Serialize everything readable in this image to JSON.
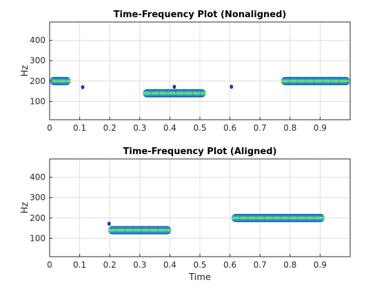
{
  "chart_data": [
    {
      "type": "heatmap",
      "title": "Time-Frequency Plot (Nonaligned)",
      "xlabel": "",
      "ylabel": "Hz",
      "xlim": [
        0,
        1
      ],
      "ylim": [
        10,
        490
      ],
      "xticks": [
        0,
        0.1,
        0.2,
        0.3,
        0.4,
        0.5,
        0.6,
        0.7,
        0.8,
        0.9
      ],
      "xtick_labels": [
        "0",
        "0.1",
        "0.2",
        "0.3",
        "0.4",
        "0.5",
        "0.6",
        "0.7",
        "0.8",
        "0.9"
      ],
      "yticks": [
        100,
        200,
        300,
        400
      ],
      "ytick_labels": [
        "100",
        "200",
        "300",
        "400"
      ],
      "grid": true,
      "bands": [
        {
          "t_start": 0.0,
          "t_end": 0.07,
          "freq": 200,
          "bandwidth": 40
        },
        {
          "t_start": 0.31,
          "t_end": 0.52,
          "freq": 140,
          "bandwidth": 40
        },
        {
          "t_start": 0.77,
          "t_end": 1.0,
          "freq": 200,
          "bandwidth": 40
        }
      ],
      "blips": [
        {
          "t": 0.11,
          "freq": 170
        },
        {
          "t": 0.605,
          "freq": 172
        },
        {
          "t": 0.415,
          "freq": 172
        }
      ]
    },
    {
      "type": "heatmap",
      "title": "Time-Frequency Plot (Aligned)",
      "xlabel": "Time",
      "ylabel": "Hz",
      "xlim": [
        0,
        1
      ],
      "ylim": [
        10,
        490
      ],
      "xticks": [
        0,
        0.1,
        0.2,
        0.3,
        0.4,
        0.5,
        0.6,
        0.7,
        0.8,
        0.9
      ],
      "xtick_labels": [
        "0",
        "0.1",
        "0.2",
        "0.3",
        "0.4",
        "0.5",
        "0.6",
        "0.7",
        "0.8",
        "0.9"
      ],
      "yticks": [
        100,
        200,
        300,
        400
      ],
      "ytick_labels": [
        "100",
        "200",
        "300",
        "400"
      ],
      "grid": true,
      "bands": [
        {
          "t_start": 0.195,
          "t_end": 0.405,
          "freq": 140,
          "bandwidth": 40
        },
        {
          "t_start": 0.605,
          "t_end": 0.915,
          "freq": 200,
          "bandwidth": 40
        }
      ],
      "blips": [
        {
          "t": 0.198,
          "freq": 172
        }
      ]
    }
  ]
}
